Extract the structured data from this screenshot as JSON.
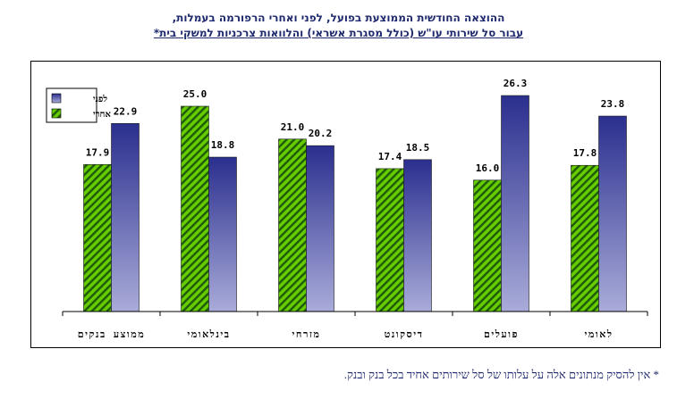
{
  "title": {
    "line1": "ההוצאה החודשית הממוצעת בפועל, לפני ואחרי הרפורמה בעמלות,",
    "line2": "עבור סל שירותי עו\"ש (כולל מסגרת אשראי) והלוואות צרכניות למשקי בית*"
  },
  "footnote": "* אין להסיק מנתונים אלה על עלותו של סל שירותים אחיד בכל בנק ובנק.",
  "chart_data": {
    "type": "bar",
    "categories": [
      "ממוצע בנקים",
      "בינלאומי",
      "מזרחי",
      "דיסקונט",
      "פועלים",
      "לאומי"
    ],
    "series": [
      {
        "name": "לפני",
        "values": [
          22.9,
          18.8,
          20.2,
          18.5,
          26.3,
          23.8
        ],
        "color": "#2e3192"
      },
      {
        "name": "אחרי",
        "values": [
          17.9,
          25.0,
          21.0,
          17.4,
          16.0,
          17.8
        ],
        "color": "#66cc00"
      }
    ],
    "ylim": [
      0,
      30
    ],
    "grid": false,
    "legend": "top-left"
  }
}
